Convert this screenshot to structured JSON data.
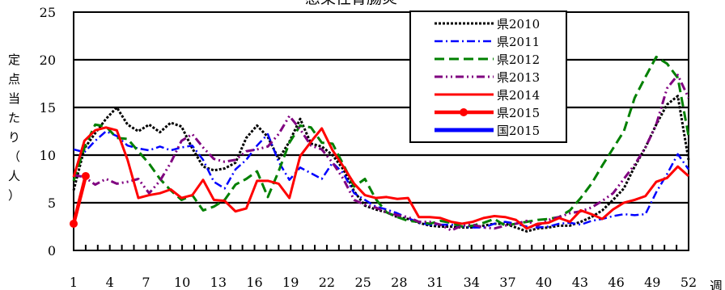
{
  "chart_data": {
    "type": "line",
    "title": "感染性胃腸炎",
    "ylabel_chars": [
      "定",
      "点",
      "当",
      "た",
      "り",
      "（",
      "人",
      "）"
    ],
    "xlabel": "週",
    "ylim": [
      0,
      25
    ],
    "yticks": [
      0,
      5,
      10,
      15,
      20,
      25
    ],
    "xlim": [
      1,
      52
    ],
    "xticks": [
      1,
      4,
      7,
      10,
      13,
      16,
      19,
      22,
      25,
      28,
      31,
      34,
      37,
      40,
      43,
      46,
      49,
      52
    ],
    "grid": true,
    "legend_position": "top-right",
    "series": [
      {
        "name": "県2010",
        "color": "#000000",
        "dash": "3,2",
        "width": 3,
        "marker": false,
        "values": [
          6.3,
          10.7,
          12.3,
          13.8,
          15.0,
          13.2,
          12.5,
          13.2,
          12.4,
          13.4,
          13.0,
          10.7,
          8.8,
          8.4,
          8.6,
          9.2,
          11.8,
          13.1,
          11.9,
          9.6,
          11.4,
          13.8,
          11.2,
          10.9,
          10.0,
          8.5,
          6.2,
          4.7,
          4.3,
          4.0,
          3.5,
          3.3,
          2.9,
          2.6,
          2.5,
          2.5,
          2.4,
          2.4,
          2.6,
          2.8,
          2.8,
          2.4,
          2.0,
          2.3,
          2.4,
          2.6,
          2.6,
          3.0,
          3.5,
          4.2,
          5.3,
          6.5,
          8.8,
          10.8,
          13.2,
          15.3,
          16.2,
          9.5
        ]
      },
      {
        "name": "県2011",
        "color": "#0000ff",
        "dash": "10,4,2,4",
        "width": 2.5,
        "marker": false,
        "values": [
          10.6,
          10.3,
          11.5,
          12.5,
          12.0,
          11.0,
          10.7,
          10.5,
          10.9,
          10.5,
          10.8,
          11.0,
          9.5,
          7.2,
          6.5,
          8.5,
          9.5,
          11.0,
          12.2,
          9.3,
          7.4,
          8.7,
          8.1,
          7.5,
          9.2,
          8.1,
          6.0,
          5.3,
          4.6,
          4.3,
          3.9,
          3.4,
          2.9,
          2.7,
          2.7,
          2.7,
          2.5,
          2.4,
          2.4,
          2.8,
          3.0,
          2.8,
          2.5,
          2.4,
          2.5,
          2.8,
          2.9,
          2.7,
          3.1,
          3.3,
          3.6,
          3.8,
          3.7,
          3.8,
          6.1,
          8.0,
          10.1,
          8.5
        ]
      },
      {
        "name": "県2012",
        "color": "#008000",
        "dash": "12,6",
        "width": 3,
        "marker": false,
        "values": [
          7.3,
          10.8,
          13.2,
          13.0,
          11.8,
          11.7,
          10.4,
          9.1,
          7.5,
          6.3,
          5.3,
          5.8,
          4.2,
          4.6,
          5.3,
          6.9,
          7.5,
          8.3,
          5.6,
          8.3,
          11.3,
          13.1,
          12.9,
          11.3,
          11.2,
          9.0,
          6.7,
          7.5,
          5.4,
          4.0,
          3.5,
          3.1,
          3.0,
          2.8,
          3.1,
          2.9,
          2.5,
          2.6,
          2.9,
          3.3,
          2.6,
          2.8,
          3.0,
          3.2,
          3.3,
          3.5,
          4.2,
          5.5,
          7.0,
          8.9,
          10.7,
          12.5,
          16.0,
          18.2,
          20.3,
          19.6,
          18.1,
          12.0
        ]
      },
      {
        "name": "県2013",
        "color": "#800080",
        "dash": "10,4,2,4,2,4",
        "width": 3,
        "marker": false,
        "values": [
          7.9,
          7.7,
          6.9,
          7.5,
          7.0,
          7.2,
          7.5,
          6.0,
          7.3,
          9.2,
          11.5,
          12.2,
          10.8,
          9.6,
          9.3,
          9.5,
          10.4,
          10.6,
          10.9,
          12.2,
          14.1,
          12.7,
          11.0,
          10.6,
          9.2,
          7.5,
          5.3,
          4.8,
          4.5,
          4.0,
          3.7,
          3.5,
          3.0,
          3.0,
          2.7,
          2.1,
          2.6,
          2.7,
          2.4,
          2.3,
          2.6,
          2.8,
          3.1,
          2.6,
          3.2,
          3.5,
          3.9,
          4.1,
          4.5,
          5.2,
          6.0,
          7.5,
          9.0,
          10.8,
          13.2,
          17.0,
          18.4,
          16.0
        ]
      },
      {
        "name": "県2014",
        "color": "#ff0000",
        "dash": "",
        "width": 3,
        "marker": false,
        "values": [
          7.7,
          11.5,
          12.6,
          12.9,
          12.6,
          9.5,
          5.5,
          5.8,
          6.0,
          6.4,
          5.5,
          5.8,
          7.4,
          5.3,
          5.2,
          4.1,
          4.4,
          7.3,
          7.3,
          7.0,
          5.5,
          9.9,
          11.4,
          12.8,
          10.5,
          8.8,
          7.0,
          5.8,
          5.5,
          5.6,
          5.4,
          5.5,
          3.5,
          3.5,
          3.4,
          3.0,
          2.8,
          3.0,
          3.4,
          3.6,
          3.5,
          3.2,
          2.3,
          2.8,
          2.9,
          3.4,
          3.0,
          4.2,
          3.8,
          3.3,
          4.3,
          5.0,
          5.3,
          5.7,
          7.2,
          7.6,
          8.8,
          7.8
        ]
      },
      {
        "name": "県2015",
        "color": "#ff0000",
        "dash": "",
        "width": 4.5,
        "marker": true,
        "values": [
          2.8,
          7.8
        ]
      },
      {
        "name": "国2015",
        "color": "#0000ff",
        "dash": "",
        "width": 5,
        "marker": false,
        "values": []
      }
    ]
  }
}
